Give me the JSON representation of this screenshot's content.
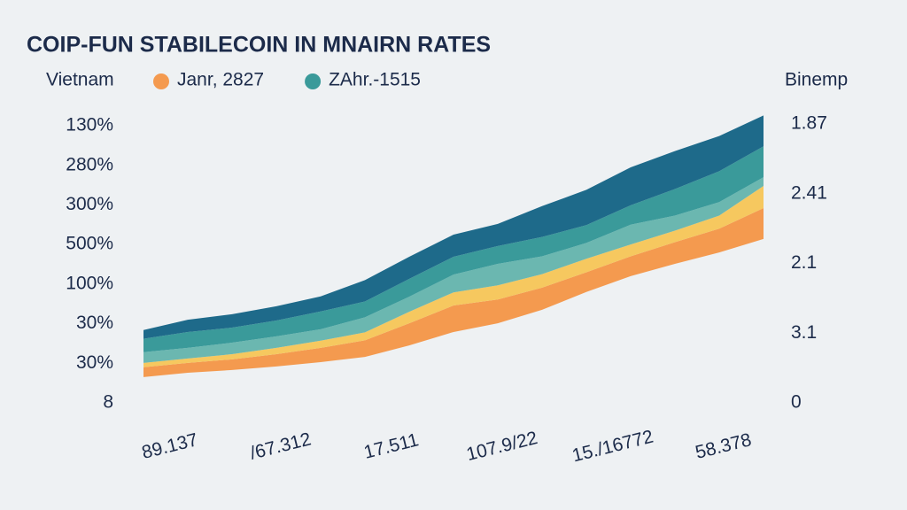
{
  "chart_data": {
    "type": "stacked_area",
    "title": "COIP-FUN STABILECOIN IN MNAIRN RATES",
    "legend_label": "Vietnam",
    "right_axis_title": "Binemp",
    "left_axis_labels": [
      "8",
      "30%",
      "30%",
      "100%",
      "500%",
      "300%",
      "280%",
      "130%"
    ],
    "right_axis_labels": [
      "0",
      "3.1",
      "2.1",
      "2.41",
      "1.87"
    ],
    "x_labels": [
      "89.137",
      "/67.312",
      "17.511",
      "107.9/22",
      "15./16772",
      "58.378"
    ],
    "ylim": [
      0,
      7
    ],
    "base": [
      0.65,
      0.76,
      0.83,
      0.92,
      1.03,
      1.16,
      1.45,
      1.79,
      2.01,
      2.35,
      2.8,
      3.2,
      3.51,
      3.8,
      4.14
    ],
    "series": [
      {
        "name": "Janr, 2827",
        "color": "#f49a4f",
        "values": [
          0.25,
          0.25,
          0.27,
          0.31,
          0.36,
          0.42,
          0.56,
          0.67,
          0.6,
          0.56,
          0.5,
          0.5,
          0.55,
          0.6,
          0.78
        ]
      },
      {
        "color": "#f6c85f",
        "values": [
          0.11,
          0.11,
          0.13,
          0.16,
          0.18,
          0.2,
          0.29,
          0.33,
          0.36,
          0.34,
          0.34,
          0.3,
          0.29,
          0.33,
          0.56
        ]
      },
      {
        "color": "#6bb7b0",
        "values": [
          0.27,
          0.27,
          0.29,
          0.29,
          0.29,
          0.38,
          0.38,
          0.45,
          0.54,
          0.45,
          0.4,
          0.5,
          0.38,
          0.34,
          0.22
        ]
      },
      {
        "name": "ZAhr.-1515",
        "color": "#3a9a9a",
        "values": [
          0.34,
          0.4,
          0.38,
          0.4,
          0.45,
          0.4,
          0.45,
          0.45,
          0.45,
          0.49,
          0.45,
          0.49,
          0.67,
          0.78,
          0.78
        ]
      },
      {
        "color": "#1e6a8a",
        "values": [
          0.22,
          0.31,
          0.34,
          0.36,
          0.38,
          0.54,
          0.56,
          0.56,
          0.56,
          0.78,
          0.89,
          0.96,
          0.96,
          0.89,
          0.78
        ]
      }
    ]
  }
}
